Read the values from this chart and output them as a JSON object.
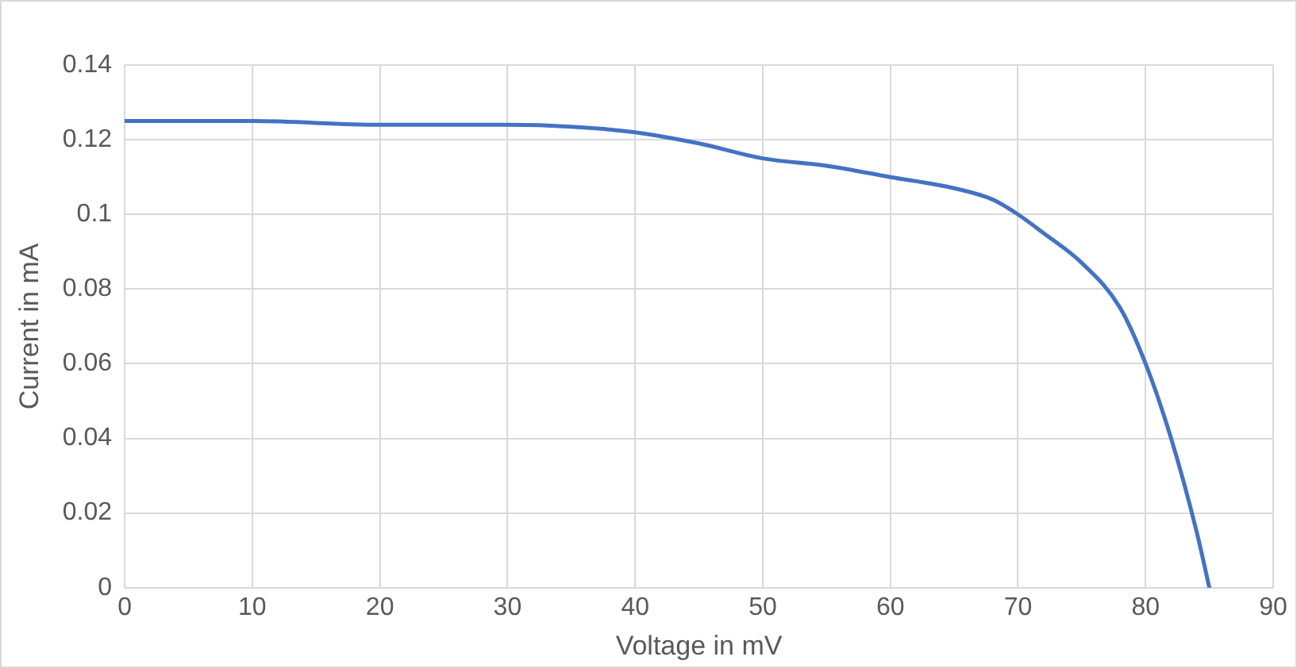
{
  "chart_data": {
    "type": "line",
    "xlabel": "Voltage in mV",
    "ylabel": "Current in mA",
    "series": [
      {
        "color": "#4472c4",
        "x": [
          0,
          10,
          20,
          30,
          35,
          40,
          45,
          50,
          55,
          60,
          65,
          68,
          70,
          72,
          75,
          78,
          80,
          82,
          84,
          85
        ],
        "values": [
          0.125,
          0.125,
          0.124,
          0.124,
          0.1235,
          0.122,
          0.119,
          0.115,
          0.113,
          0.11,
          0.107,
          0.104,
          0.1,
          0.095,
          0.087,
          0.075,
          0.06,
          0.04,
          0.015,
          0
        ]
      }
    ],
    "xlim": [
      0,
      90
    ],
    "xticks": [
      0,
      10,
      20,
      30,
      40,
      50,
      60,
      70,
      80,
      90
    ],
    "ylim": [
      0,
      0.14
    ],
    "yticks": [
      0,
      0.02,
      0.04,
      0.06,
      0.08,
      0.1,
      0.12,
      0.14
    ],
    "grid": true,
    "marker": "none",
    "line_style": "solid"
  }
}
